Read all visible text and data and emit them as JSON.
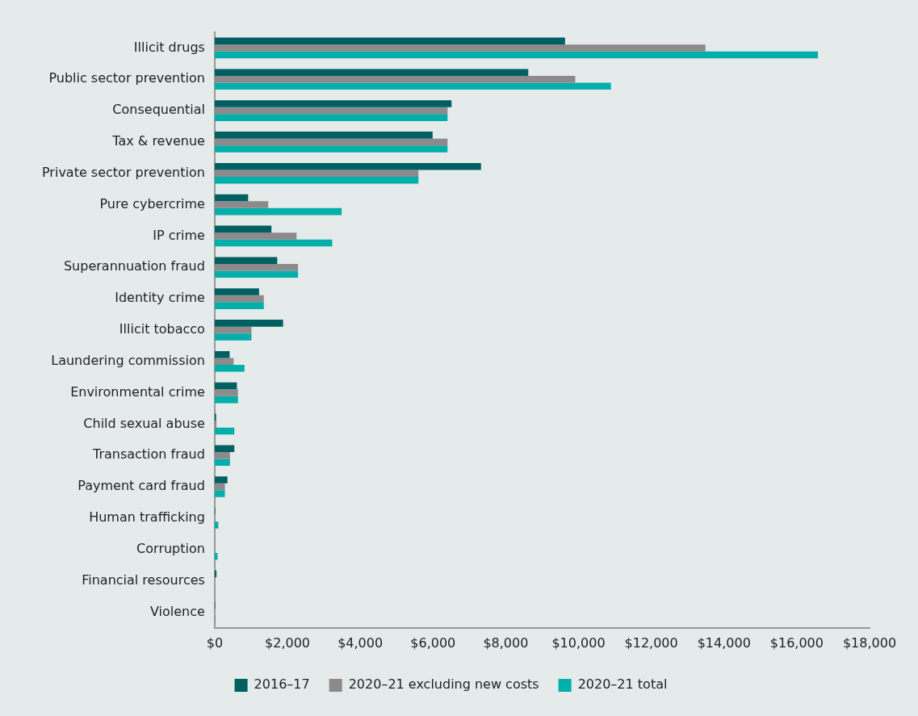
{
  "chart_data": {
    "type": "bar",
    "orientation": "horizontal",
    "categories": [
      "Illicit drugs",
      "Public sector prevention",
      "Consequential",
      "Tax & revenue",
      "Private sector prevention",
      "Pure cybercrime",
      "IP crime",
      "Superannuation fraud",
      "Identity crime",
      "Illicit tobacco",
      "Laundering commission",
      "Environmental crime",
      "Child sexual abuse",
      "Transaction fraud",
      "Payment card fraud",
      "Human trafficking",
      "Corruption",
      "Financial resources",
      "Violence"
    ],
    "series": [
      {
        "name": "2016–17",
        "color": "#005f61",
        "values": [
          9630,
          8620,
          6510,
          5990,
          7320,
          920,
          1560,
          1720,
          1220,
          1880,
          410,
          610,
          40,
          540,
          350,
          15,
          0,
          50,
          15
        ]
      },
      {
        "name": "2020–21 excluding new costs",
        "color": "#8c8a8a",
        "values": [
          13490,
          9910,
          6400,
          6400,
          5600,
          1470,
          2250,
          2290,
          1350,
          1010,
          520,
          640,
          50,
          420,
          280,
          null,
          null,
          0,
          null
        ]
      },
      {
        "name": "2020–21 total",
        "color": "#00aeaa",
        "values": [
          16580,
          10890,
          6400,
          6400,
          5600,
          3490,
          3230,
          2290,
          1350,
          1010,
          820,
          640,
          540,
          420,
          280,
          100,
          80,
          0,
          15
        ]
      }
    ],
    "xlim": [
      0,
      18000
    ],
    "xticks": [
      {
        "value": 0,
        "label": "$0"
      },
      {
        "value": 2000,
        "label": "$2,000"
      },
      {
        "value": 4000,
        "label": "$4,000"
      },
      {
        "value": 6000,
        "label": "$6,000"
      },
      {
        "value": 8000,
        "label": "$8,000"
      },
      {
        "value": 10000,
        "label": "$10,000"
      },
      {
        "value": 12000,
        "label": "$12,000"
      },
      {
        "value": 14000,
        "label": "$14,000"
      },
      {
        "value": 16000,
        "label": "$16,000"
      },
      {
        "value": 18000,
        "label": "$18,000"
      }
    ],
    "grid": false,
    "legend": "bottom"
  }
}
